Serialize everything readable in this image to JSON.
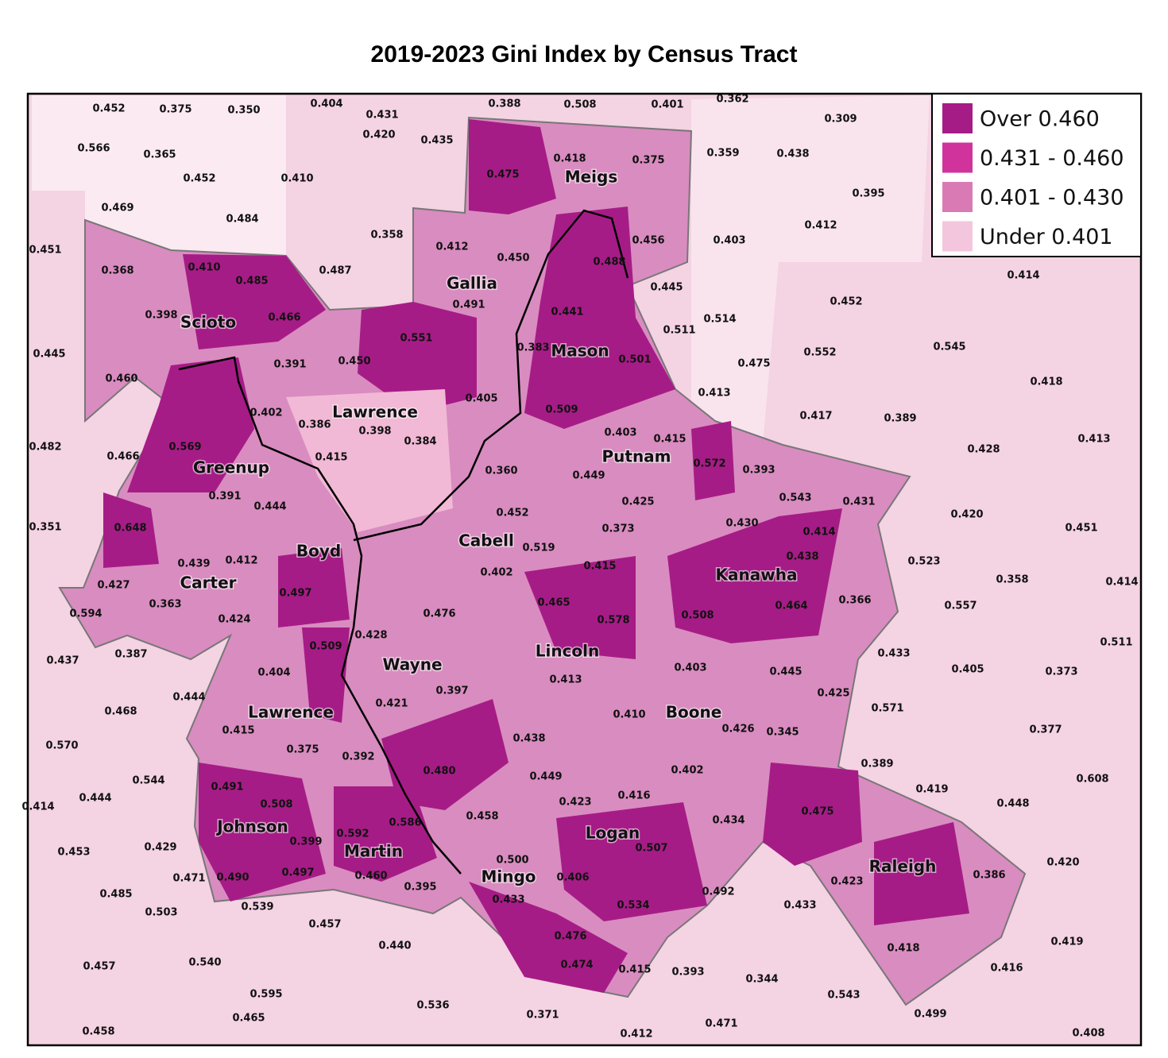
{
  "title": "2019-2023 Gini Index by Census Tract",
  "legend": [
    {
      "label": "Over 0.460",
      "color": "#a61c86"
    },
    {
      "label": "0.431 - 0.460",
      "color": "#d1339c"
    },
    {
      "label": "0.401 - 0.430",
      "color": "#da7ab5"
    },
    {
      "label": "Under 0.401",
      "color": "#f3c6dd"
    }
  ],
  "counties": [
    "Meigs",
    "Gallia",
    "Scioto",
    "Mason",
    "Lawrence",
    "Greenup",
    "Putnam",
    "Cabell",
    "Boyd",
    "Kanawha",
    "Carter",
    "Wayne",
    "Lincoln",
    "Lawrence",
    "Boone",
    "Johnson",
    "Logan",
    "Martin",
    "Mingo",
    "Raleigh"
  ],
  "tracts": [
    "0.452",
    "0.375",
    "0.350",
    "0.404",
    "0.431",
    "0.388",
    "0.508",
    "0.401",
    "0.362",
    "0.309",
    "0.566",
    "0.365",
    "0.420",
    "0.435",
    "0.475",
    "0.418",
    "0.375",
    "0.359",
    "0.438",
    "0.452",
    "0.410",
    "0.469",
    "0.484",
    "0.358",
    "0.395",
    "0.412",
    "0.403",
    "0.451",
    "0.412",
    "0.450",
    "0.456",
    "0.368",
    "0.410",
    "0.485",
    "0.487",
    "0.488",
    "0.445",
    "0.414",
    "0.491",
    "0.441",
    "0.398",
    "0.466",
    "0.511",
    "0.514",
    "0.452",
    "0.445",
    "0.551",
    "0.383",
    "0.501",
    "0.450",
    "0.391",
    "0.475",
    "0.552",
    "0.545",
    "0.460",
    "0.405",
    "0.413",
    "0.418",
    "0.402",
    "0.386",
    "0.398",
    "0.384",
    "0.509",
    "0.403",
    "0.415",
    "0.417",
    "0.389",
    "0.413",
    "0.482",
    "0.466",
    "0.569",
    "0.415",
    "0.360",
    "0.449",
    "0.572",
    "0.393",
    "0.428",
    "0.391",
    "0.444",
    "0.452",
    "0.425",
    "0.543",
    "0.431",
    "0.420",
    "0.351",
    "0.648",
    "0.373",
    "0.430",
    "0.414",
    "0.451",
    "0.519",
    "0.438",
    "0.523",
    "0.439",
    "0.412",
    "0.402",
    "0.415",
    "0.358",
    "0.414",
    "0.427",
    "0.363",
    "0.497",
    "0.465",
    "0.578",
    "0.366",
    "0.464",
    "0.557",
    "0.594",
    "0.424",
    "0.476",
    "0.508",
    "0.437",
    "0.387",
    "0.428",
    "0.509",
    "0.433",
    "0.511",
    "0.404",
    "0.413",
    "0.403",
    "0.405",
    "0.373",
    "0.445",
    "0.444",
    "0.468",
    "0.421",
    "0.397",
    "0.425",
    "0.571",
    "0.415",
    "0.410",
    "0.426",
    "0.345",
    "0.377",
    "0.570",
    "0.375",
    "0.392",
    "0.438",
    "0.480",
    "0.402",
    "0.389",
    "0.419",
    "0.544",
    "0.491",
    "0.449",
    "0.475",
    "0.608",
    "0.444",
    "0.508",
    "0.423",
    "0.416",
    "0.448",
    "0.414",
    "0.458",
    "0.586",
    "0.592",
    "0.434",
    "0.399",
    "0.507",
    "0.420",
    "0.453",
    "0.429",
    "0.500",
    "0.471",
    "0.490",
    "0.497",
    "0.460",
    "0.406",
    "0.423",
    "0.386",
    "0.395",
    "0.492",
    "0.485",
    "0.539",
    "0.433",
    "0.534",
    "0.433",
    "0.503",
    "0.457",
    "0.476",
    "0.419",
    "0.440",
    "0.418",
    "0.457",
    "0.540",
    "0.474",
    "0.415",
    "0.393",
    "0.416",
    "0.344",
    "0.595",
    "0.536",
    "0.543",
    "0.465",
    "0.371",
    "0.471",
    "0.499",
    "0.458",
    "0.412",
    "0.408"
  ]
}
